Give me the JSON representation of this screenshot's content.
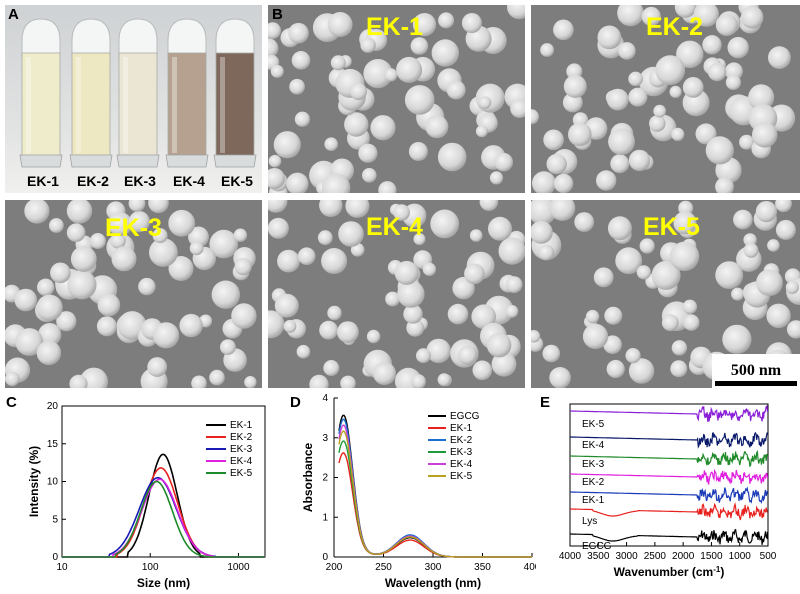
{
  "figure": {
    "panels": {
      "A": {
        "label": "A",
        "vials": [
          {
            "name": "EK-1",
            "color": "#efeccb"
          },
          {
            "name": "EK-2",
            "color": "#ede7c2"
          },
          {
            "name": "EK-3",
            "color": "#ebe6d3"
          },
          {
            "name": "EK-4",
            "color": "#b6a190"
          },
          {
            "name": "EK-5",
            "color": "#7e685c"
          }
        ]
      },
      "B": {
        "label": "B",
        "images": [
          "EK-1",
          "EK-2",
          "EK-3",
          "EK-4",
          "EK-5"
        ],
        "scale_bar": "500 nm"
      },
      "C": {
        "label": "C"
      },
      "D": {
        "label": "D"
      },
      "E": {
        "label": "E"
      }
    }
  },
  "chart_data": [
    {
      "panel": "C",
      "type": "line",
      "xlabel": "Size (nm)",
      "ylabel": "Intensity (%)",
      "xscale": "log",
      "xlim": [
        10,
        2000
      ],
      "ylim": [
        0,
        20
      ],
      "xticks": [
        "10",
        "100",
        "1000"
      ],
      "yticks": [
        "0",
        "5",
        "10",
        "15",
        "20"
      ],
      "legend": "top-right",
      "series": [
        {
          "name": "EK-1",
          "color": "#000000",
          "peak": 13.6,
          "center": 140,
          "sigma": 0.16,
          "start": 55,
          "end": 370
        },
        {
          "name": "EK-2",
          "color": "#e8211e",
          "peak": 11.8,
          "center": 132,
          "sigma": 0.19,
          "start": 42,
          "end": 460
        },
        {
          "name": "EK-3",
          "color": "#1a1ab8",
          "peak": 10.5,
          "center": 122,
          "sigma": 0.21,
          "start": 34,
          "end": 560
        },
        {
          "name": "EK-4",
          "color": "#e020e0",
          "peak": 10.3,
          "center": 128,
          "sigma": 0.2,
          "start": 38,
          "end": 520
        },
        {
          "name": "EK-5",
          "color": "#1f8a2a",
          "peak": 10.0,
          "center": 118,
          "sigma": 0.18,
          "start": 40,
          "end": 470
        }
      ]
    },
    {
      "panel": "D",
      "type": "line",
      "xlabel": "Wavelength (nm)",
      "ylabel": "Absorbance",
      "xlim": [
        200,
        400
      ],
      "ylim": [
        0,
        4
      ],
      "xticks": [
        "200",
        "250",
        "300",
        "350",
        "400"
      ],
      "yticks": [
        "0",
        "1",
        "2",
        "3",
        "4"
      ],
      "legend": "top-right",
      "series": [
        {
          "name": "EGCG",
          "color": "#000000",
          "peak": 3.3,
          "peak2": 0.48
        },
        {
          "name": "EK-1",
          "color": "#e8211e",
          "peak": 2.35,
          "peak2": 0.42
        },
        {
          "name": "EK-2",
          "color": "#1a6fd0",
          "peak": 3.2,
          "peak2": 0.55
        },
        {
          "name": "EK-3",
          "color": "#1f9a3a",
          "peak": 2.65,
          "peak2": 0.5
        },
        {
          "name": "EK-4",
          "color": "#c840d8",
          "peak": 3.05,
          "peak2": 0.52
        },
        {
          "name": "EK-5",
          "color": "#b8a020",
          "peak": 2.9,
          "peak2": 0.5
        }
      ]
    },
    {
      "panel": "E",
      "type": "line",
      "xlabel": "Wavenumber (cm",
      "xlabel_sup": "-1",
      "xlabel_end": ")",
      "xlim": [
        4000,
        500
      ],
      "xticks": [
        "4000",
        "3500",
        "3000",
        "2500",
        "2000",
        "1500",
        "1000",
        "500"
      ],
      "series": [
        {
          "name": "EGCG",
          "color": "#000000"
        },
        {
          "name": "Lys",
          "color": "#e8211e"
        },
        {
          "name": "EK-1",
          "color": "#1a3ab8"
        },
        {
          "name": "EK-2",
          "color": "#e020e0"
        },
        {
          "name": "EK-3",
          "color": "#1f8a2a"
        },
        {
          "name": "EK-4",
          "color": "#0a1a6a"
        },
        {
          "name": "EK-5",
          "color": "#8a20d8"
        }
      ]
    }
  ]
}
